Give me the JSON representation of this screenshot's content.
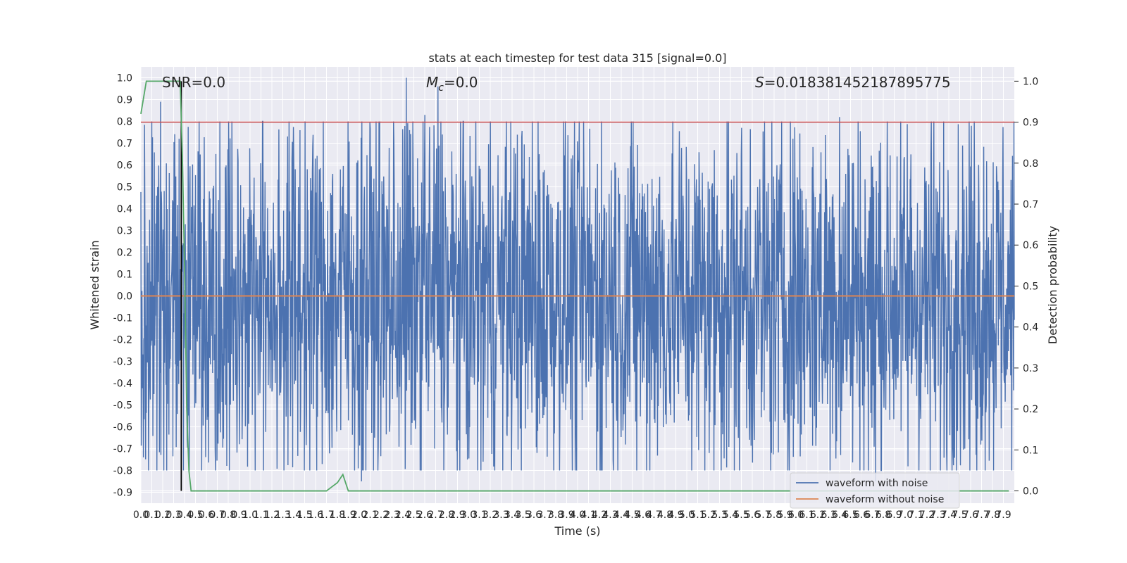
{
  "chart_data": {
    "type": "line",
    "title": "stats at each timestep for test data 315 [signal=0.0]",
    "xlabel": "Time (s)",
    "ylabel": "Whitened strain",
    "y2label": "Detection probability",
    "xlim": [
      0.0,
      8.0
    ],
    "ylim": [
      -0.95,
      1.05
    ],
    "y2lim": [
      -0.03,
      1.035
    ],
    "grid": true,
    "legend_position": "bottom-right",
    "x_ticks": [
      "0.0",
      "0.1",
      "0.2",
      "0.3",
      "0.4",
      "0.5",
      "0.6",
      "0.7",
      "0.8",
      "0.9",
      "1.0",
      "1.1",
      "1.2",
      "1.3",
      "1.4",
      "1.5",
      "1.6",
      "1.7",
      "1.8",
      "1.9",
      "2.0",
      "2.1",
      "2.2",
      "2.3",
      "2.4",
      "2.5",
      "2.6",
      "2.7",
      "2.8",
      "2.9",
      "3.0",
      "3.1",
      "3.2",
      "3.3",
      "3.4",
      "3.5",
      "3.6",
      "3.7",
      "3.8",
      "3.9",
      "4.0",
      "4.1",
      "4.2",
      "4.3",
      "4.4",
      "4.5",
      "4.6",
      "4.7",
      "4.8",
      "4.9",
      "5.0",
      "5.1",
      "5.2",
      "5.3",
      "5.4",
      "5.5",
      "5.6",
      "5.7",
      "5.8",
      "5.9",
      "6.0",
      "6.1",
      "6.2",
      "6.3",
      "6.4",
      "6.5",
      "6.6",
      "6.7",
      "6.8",
      "6.9",
      "7.0",
      "7.1",
      "7.2",
      "7.3",
      "7.4",
      "7.5",
      "7.6",
      "7.7",
      "7.8",
      "7.9"
    ],
    "y_ticks": [
      "-0.9",
      "-0.8",
      "-0.7",
      "-0.6",
      "-0.5",
      "-0.4",
      "-0.3",
      "-0.2",
      "-0.1",
      "0.0",
      "0.1",
      "0.2",
      "0.3",
      "0.4",
      "0.5",
      "0.6",
      "0.7",
      "0.8",
      "0.9",
      "1.0"
    ],
    "y2_ticks": [
      "0.0",
      "0.1",
      "0.2",
      "0.3",
      "0.4",
      "0.5",
      "0.6",
      "0.7",
      "0.8",
      "0.9",
      "1.0"
    ],
    "annotations": {
      "snr": "SNR=0.0",
      "mc_symbol": "M",
      "mc_sub": "c",
      "mc_value": "=0.0",
      "s_symbol": "S",
      "s_value": "=0.018381452187895775"
    },
    "series": [
      {
        "name": "waveform with noise",
        "color": "#4c72b0",
        "note_range": "dense noise, envelope approx between -0.85 and 1.0",
        "peaks": [
          {
            "x": 0.18,
            "y": 0.89
          },
          {
            "x": 0.35,
            "y": 0.72
          },
          {
            "x": 2.43,
            "y": 1.0
          },
          {
            "x": 2.6,
            "y": 0.83
          },
          {
            "x": 2.72,
            "y": 0.96
          },
          {
            "x": 6.4,
            "y": 0.82
          },
          {
            "x": 2.02,
            "y": -0.85
          },
          {
            "x": 6.73,
            "y": -0.85
          }
        ]
      },
      {
        "name": "waveform without noise",
        "color": "#dd8452",
        "x": [
          0.0,
          8.0
        ],
        "y": [
          0.0,
          0.0
        ]
      },
      {
        "name": "detection probability",
        "color": "#55a868",
        "axis": "right",
        "x": [
          0.0,
          0.05,
          0.1,
          0.2,
          0.3,
          0.36,
          0.38,
          0.4,
          0.42,
          0.44,
          0.46,
          0.5,
          1.7,
          1.75,
          1.8,
          1.85,
          1.9,
          7.95
        ],
        "y": [
          0.92,
          1.0,
          1.0,
          1.0,
          1.0,
          1.0,
          0.82,
          0.55,
          0.2,
          0.05,
          0.0,
          0.0,
          0.0,
          0.01,
          0.02,
          0.04,
          0.0,
          0.0
        ]
      }
    ],
    "threshold": {
      "axis": "right",
      "value": 0.9,
      "color": "#c44e52"
    },
    "marker_time": {
      "x": 0.37,
      "color": "#000000"
    },
    "legend": [
      "waveform with noise",
      "waveform without noise"
    ]
  }
}
